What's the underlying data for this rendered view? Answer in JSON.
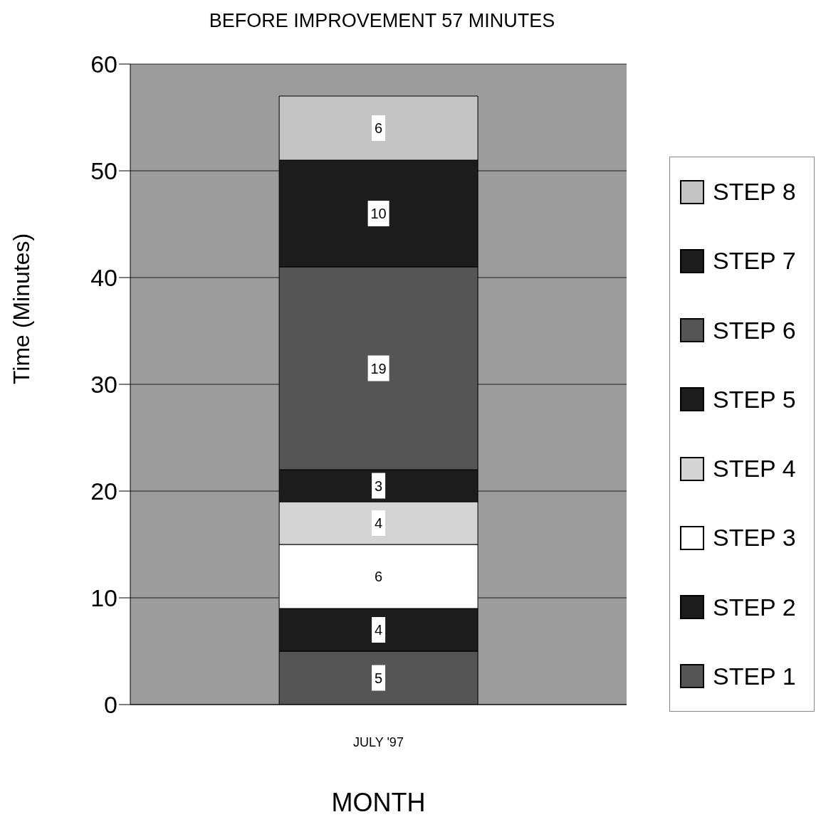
{
  "chart_data": {
    "type": "bar",
    "title": "BEFORE  IMPROVEMENT 57 MINUTES",
    "xlabel": "MONTH",
    "ylabel": "Time (Minutes)",
    "categories": [
      "JULY '97"
    ],
    "stacked": true,
    "series": [
      {
        "name": "STEP 1",
        "color": "#555555",
        "values": [
          5
        ]
      },
      {
        "name": "STEP 2",
        "color": "#1c1c1c",
        "values": [
          4
        ]
      },
      {
        "name": "STEP 3",
        "color": "#ffffff",
        "values": [
          6
        ]
      },
      {
        "name": "STEP 4",
        "color": "#d4d4d4",
        "values": [
          4
        ]
      },
      {
        "name": "STEP 5",
        "color": "#1c1c1c",
        "values": [
          3
        ]
      },
      {
        "name": "STEP 6",
        "color": "#555555",
        "values": [
          19
        ]
      },
      {
        "name": "STEP 7",
        "color": "#1c1c1c",
        "values": [
          10
        ]
      },
      {
        "name": "STEP 8",
        "color": "#c4c4c4",
        "values": [
          6
        ]
      }
    ],
    "ylim": [
      0,
      60
    ],
    "yticks": [
      0,
      10,
      20,
      30,
      40,
      50,
      60
    ],
    "grid": "y",
    "legend": "right",
    "data_labels": true
  }
}
